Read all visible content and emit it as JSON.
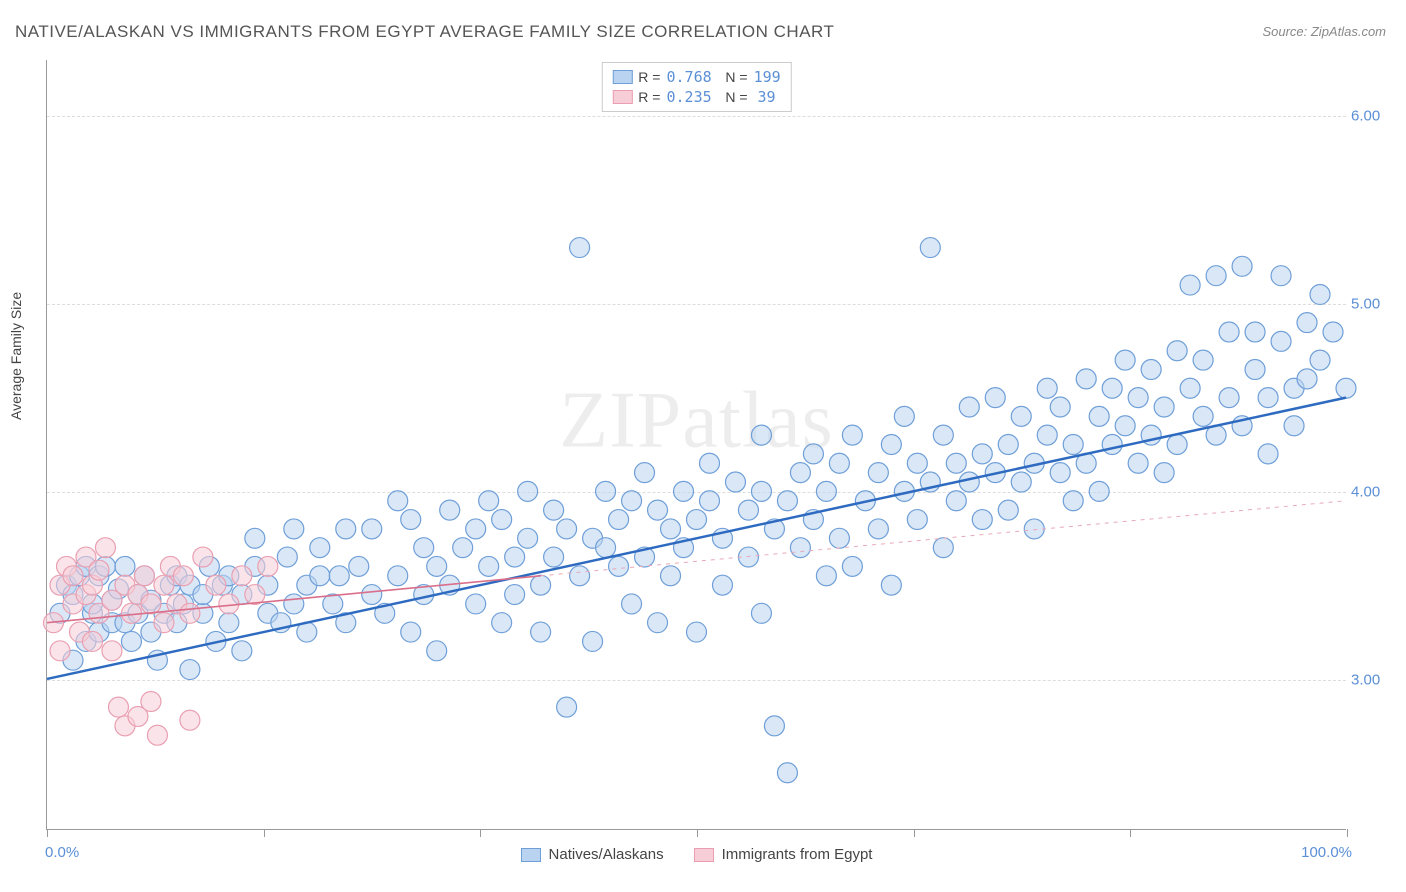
{
  "title": "NATIVE/ALASKAN VS IMMIGRANTS FROM EGYPT AVERAGE FAMILY SIZE CORRELATION CHART",
  "source": "Source: ZipAtlas.com",
  "chart": {
    "type": "scatter",
    "ylabel": "Average Family Size",
    "xlim": [
      0,
      100
    ],
    "ylim": [
      2.2,
      6.3
    ],
    "yticks": [
      3.0,
      4.0,
      5.0,
      6.0
    ],
    "ytick_labels": [
      "3.00",
      "4.00",
      "5.00",
      "6.00"
    ],
    "xticks": [
      0,
      16.67,
      33.33,
      50,
      66.67,
      83.33,
      100
    ],
    "x_label_min": "0.0%",
    "x_label_max": "100.0%",
    "background_color": "#ffffff",
    "grid_color": "#dddddd",
    "axis_color": "#999999",
    "marker_radius": 10,
    "marker_stroke_width": 1.2,
    "series": [
      {
        "name": "Natives/Alaskans",
        "color_fill": "#b9d3f0",
        "color_stroke": "#6f9fd8",
        "fill_opacity": 0.55,
        "r_value": "0.768",
        "n_value": "199",
        "trend_fit": {
          "x1": 0,
          "y1": 3.0,
          "x2": 100,
          "y2": 4.5,
          "color": "#2e6bc0",
          "width": 2.5,
          "dash": "none"
        },
        "trend_extrap": {
          "x1": 100,
          "y1": 4.5,
          "x2": 100,
          "y2": 4.5,
          "color": "#2e6bc0",
          "width": 1,
          "dash": "5,4"
        },
        "points": [
          [
            1,
            3.35
          ],
          [
            1.5,
            3.5
          ],
          [
            2,
            3.1
          ],
          [
            2,
            3.45
          ],
          [
            2.5,
            3.55
          ],
          [
            3,
            3.2
          ],
          [
            3,
            3.6
          ],
          [
            3.5,
            3.35
          ],
          [
            3.5,
            3.4
          ],
          [
            4,
            3.55
          ],
          [
            4,
            3.25
          ],
          [
            4.5,
            3.6
          ],
          [
            5,
            3.3
          ],
          [
            5,
            3.42
          ],
          [
            5.5,
            3.48
          ],
          [
            6,
            3.3
          ],
          [
            6,
            3.6
          ],
          [
            6.5,
            3.2
          ],
          [
            7,
            3.35
          ],
          [
            7,
            3.45
          ],
          [
            7.5,
            3.55
          ],
          [
            8,
            3.25
          ],
          [
            8,
            3.42
          ],
          [
            8.5,
            3.1
          ],
          [
            9,
            3.35
          ],
          [
            9.5,
            3.5
          ],
          [
            10,
            3.3
          ],
          [
            10,
            3.55
          ],
          [
            10.5,
            3.4
          ],
          [
            11,
            3.05
          ],
          [
            11,
            3.5
          ],
          [
            12,
            3.35
          ],
          [
            12,
            3.45
          ],
          [
            12.5,
            3.6
          ],
          [
            13,
            3.2
          ],
          [
            13.5,
            3.5
          ],
          [
            14,
            3.3
          ],
          [
            14,
            3.55
          ],
          [
            15,
            3.15
          ],
          [
            15,
            3.45
          ],
          [
            16,
            3.6
          ],
          [
            16,
            3.75
          ],
          [
            17,
            3.35
          ],
          [
            17,
            3.5
          ],
          [
            18,
            3.3
          ],
          [
            18.5,
            3.65
          ],
          [
            19,
            3.4
          ],
          [
            19,
            3.8
          ],
          [
            20,
            3.5
          ],
          [
            20,
            3.25
          ],
          [
            21,
            3.55
          ],
          [
            21,
            3.7
          ],
          [
            22,
            3.4
          ],
          [
            22.5,
            3.55
          ],
          [
            23,
            3.8
          ],
          [
            23,
            3.3
          ],
          [
            24,
            3.6
          ],
          [
            25,
            3.45
          ],
          [
            25,
            3.8
          ],
          [
            26,
            3.35
          ],
          [
            27,
            3.55
          ],
          [
            27,
            3.95
          ],
          [
            28,
            3.85
          ],
          [
            28,
            3.25
          ],
          [
            29,
            3.45
          ],
          [
            29,
            3.7
          ],
          [
            30,
            3.6
          ],
          [
            30,
            3.15
          ],
          [
            31,
            3.5
          ],
          [
            31,
            3.9
          ],
          [
            32,
            3.7
          ],
          [
            33,
            3.4
          ],
          [
            33,
            3.8
          ],
          [
            34,
            3.6
          ],
          [
            34,
            3.95
          ],
          [
            35,
            3.85
          ],
          [
            35,
            3.3
          ],
          [
            36,
            3.65
          ],
          [
            36,
            3.45
          ],
          [
            37,
            3.75
          ],
          [
            37,
            4.0
          ],
          [
            38,
            3.5
          ],
          [
            38,
            3.25
          ],
          [
            39,
            3.65
          ],
          [
            39,
            3.9
          ],
          [
            40,
            3.8
          ],
          [
            40,
            2.85
          ],
          [
            41,
            3.55
          ],
          [
            41,
            5.3
          ],
          [
            42,
            3.75
          ],
          [
            42,
            3.2
          ],
          [
            43,
            3.7
          ],
          [
            43,
            4.0
          ],
          [
            44,
            3.6
          ],
          [
            44,
            3.85
          ],
          [
            45,
            3.95
          ],
          [
            45,
            3.4
          ],
          [
            46,
            3.65
          ],
          [
            46,
            4.1
          ],
          [
            47,
            3.9
          ],
          [
            47,
            3.3
          ],
          [
            48,
            3.8
          ],
          [
            48,
            3.55
          ],
          [
            49,
            4.0
          ],
          [
            49,
            3.7
          ],
          [
            50,
            3.85
          ],
          [
            50,
            3.25
          ],
          [
            51,
            3.95
          ],
          [
            51,
            4.15
          ],
          [
            52,
            3.75
          ],
          [
            52,
            3.5
          ],
          [
            53,
            4.05
          ],
          [
            54,
            3.9
          ],
          [
            54,
            3.65
          ],
          [
            55,
            4.0
          ],
          [
            55,
            3.35
          ],
          [
            55,
            4.3
          ],
          [
            56,
            3.8
          ],
          [
            56,
            2.75
          ],
          [
            57,
            3.95
          ],
          [
            57,
            2.5
          ],
          [
            58,
            4.1
          ],
          [
            58,
            3.7
          ],
          [
            59,
            3.85
          ],
          [
            59,
            4.2
          ],
          [
            60,
            4.0
          ],
          [
            60,
            3.55
          ],
          [
            61,
            4.15
          ],
          [
            61,
            3.75
          ],
          [
            62,
            4.3
          ],
          [
            62,
            3.6
          ],
          [
            63,
            3.95
          ],
          [
            64,
            4.1
          ],
          [
            64,
            3.8
          ],
          [
            65,
            4.25
          ],
          [
            65,
            3.5
          ],
          [
            66,
            4.0
          ],
          [
            66,
            4.4
          ],
          [
            67,
            3.85
          ],
          [
            67,
            4.15
          ],
          [
            68,
            4.05
          ],
          [
            68,
            5.3
          ],
          [
            69,
            4.3
          ],
          [
            69,
            3.7
          ],
          [
            70,
            4.15
          ],
          [
            70,
            3.95
          ],
          [
            71,
            4.45
          ],
          [
            71,
            4.05
          ],
          [
            72,
            3.85
          ],
          [
            72,
            4.2
          ],
          [
            73,
            4.1
          ],
          [
            73,
            4.5
          ],
          [
            74,
            4.25
          ],
          [
            74,
            3.9
          ],
          [
            75,
            4.4
          ],
          [
            75,
            4.05
          ],
          [
            76,
            4.15
          ],
          [
            76,
            3.8
          ],
          [
            77,
            4.55
          ],
          [
            77,
            4.3
          ],
          [
            78,
            4.1
          ],
          [
            78,
            4.45
          ],
          [
            79,
            4.25
          ],
          [
            79,
            3.95
          ],
          [
            80,
            4.6
          ],
          [
            80,
            4.15
          ],
          [
            81,
            4.4
          ],
          [
            81,
            4.0
          ],
          [
            82,
            4.25
          ],
          [
            82,
            4.55
          ],
          [
            83,
            4.7
          ],
          [
            83,
            4.35
          ],
          [
            84,
            4.15
          ],
          [
            84,
            4.5
          ],
          [
            85,
            4.3
          ],
          [
            85,
            4.65
          ],
          [
            86,
            4.45
          ],
          [
            86,
            4.1
          ],
          [
            87,
            4.75
          ],
          [
            87,
            4.25
          ],
          [
            88,
            5.1
          ],
          [
            88,
            4.55
          ],
          [
            89,
            4.4
          ],
          [
            89,
            4.7
          ],
          [
            90,
            4.3
          ],
          [
            90,
            5.15
          ],
          [
            91,
            4.85
          ],
          [
            91,
            4.5
          ],
          [
            92,
            5.2
          ],
          [
            92,
            4.35
          ],
          [
            93,
            4.65
          ],
          [
            93,
            4.85
          ],
          [
            94,
            4.5
          ],
          [
            94,
            4.2
          ],
          [
            95,
            5.15
          ],
          [
            95,
            4.8
          ],
          [
            96,
            4.55
          ],
          [
            96,
            4.35
          ],
          [
            97,
            4.9
          ],
          [
            97,
            4.6
          ],
          [
            98,
            4.7
          ],
          [
            98,
            5.05
          ],
          [
            99,
            4.85
          ],
          [
            100,
            4.55
          ]
        ]
      },
      {
        "name": "Immigrants from Egypt",
        "color_fill": "#f7cdd7",
        "color_stroke": "#e99fb1",
        "fill_opacity": 0.55,
        "r_value": "0.235",
        "n_value": "39",
        "trend_fit": {
          "x1": 0,
          "y1": 3.3,
          "x2": 38,
          "y2": 3.55,
          "color": "#d96f8a",
          "width": 1.6,
          "dash": "none"
        },
        "trend_extrap": {
          "x1": 38,
          "y1": 3.55,
          "x2": 100,
          "y2": 3.95,
          "color": "#e9a8b8",
          "width": 1,
          "dash": "4,5"
        },
        "points": [
          [
            0.5,
            3.3
          ],
          [
            1,
            3.5
          ],
          [
            1,
            3.15
          ],
          [
            1.5,
            3.6
          ],
          [
            2,
            3.4
          ],
          [
            2,
            3.55
          ],
          [
            2.5,
            3.25
          ],
          [
            3,
            3.65
          ],
          [
            3,
            3.45
          ],
          [
            3.5,
            3.2
          ],
          [
            3.5,
            3.5
          ],
          [
            4,
            3.58
          ],
          [
            4,
            3.35
          ],
          [
            4.5,
            3.7
          ],
          [
            5,
            3.42
          ],
          [
            5,
            3.15
          ],
          [
            5.5,
            2.85
          ],
          [
            6,
            3.5
          ],
          [
            6,
            2.75
          ],
          [
            6.5,
            3.35
          ],
          [
            7,
            2.8
          ],
          [
            7,
            3.45
          ],
          [
            7.5,
            3.55
          ],
          [
            8,
            2.88
          ],
          [
            8,
            3.4
          ],
          [
            8.5,
            2.7
          ],
          [
            9,
            3.5
          ],
          [
            9,
            3.3
          ],
          [
            9.5,
            3.6
          ],
          [
            10,
            3.4
          ],
          [
            10.5,
            3.55
          ],
          [
            11,
            3.35
          ],
          [
            11,
            2.78
          ],
          [
            12,
            3.65
          ],
          [
            13,
            3.5
          ],
          [
            14,
            3.4
          ],
          [
            15,
            3.55
          ],
          [
            16,
            3.45
          ],
          [
            17,
            3.6
          ]
        ]
      }
    ],
    "legend_bottom": [
      {
        "label": "Natives/Alaskans",
        "fill": "#b9d3f0",
        "stroke": "#6f9fd8"
      },
      {
        "label": "Immigrants from Egypt",
        "fill": "#f7cdd7",
        "stroke": "#e99fb1"
      }
    ],
    "watermark": "ZIPatlas"
  }
}
